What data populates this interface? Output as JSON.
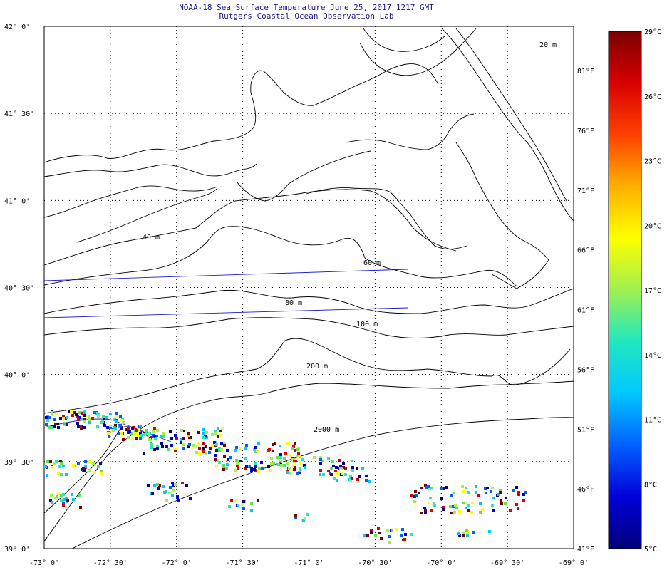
{
  "header": {
    "title": "NOAA-18 Sea Surface Temperature June 25, 2017 1217 GMT",
    "subtitle": "Rutgers Coastal Ocean Observation Lab"
  },
  "map": {
    "lon_ticks": [
      "-73° 0'",
      "-72° 30'",
      "-72° 0'",
      "-71° 30'",
      "-71° 0'",
      "-70° 30'",
      "-70° 0'",
      "-69° 30'",
      "-69° 0'"
    ],
    "lat_ticks": [
      "42° 0'",
      "41° 30'",
      "41° 0'",
      "40° 30'",
      "40° 0'",
      "39° 30'",
      "39° 0'"
    ],
    "fahrenheit_ticks": [
      "81°F",
      "76°F",
      "71°F",
      "66°F",
      "61°F",
      "56°F",
      "51°F",
      "46°F",
      "41°F"
    ],
    "contour_labels": [
      "40 m",
      "60 m",
      "80 m",
      "100 m",
      "200 m",
      "2000 m",
      "20 m"
    ],
    "grid": "dotted",
    "line_color": "#000000",
    "track_color": "#1a1acc"
  },
  "colorbar": {
    "labels": [
      "29°C",
      "26°C",
      "23°C",
      "20°C",
      "17°C",
      "14°C",
      "11°C",
      "8°C",
      "5°C"
    ],
    "stops": [
      "#00007a",
      "#0000d9",
      "#0060ff",
      "#00c8ff",
      "#20e8c0",
      "#a0f050",
      "#ffff00",
      "#ffb000",
      "#ff4000",
      "#d80000",
      "#7a0000"
    ]
  }
}
